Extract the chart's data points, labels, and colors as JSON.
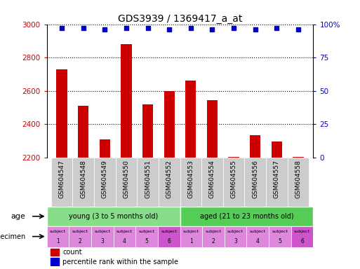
{
  "title": "GDS3939 / 1369417_a_at",
  "samples": [
    "GSM604547",
    "GSM604548",
    "GSM604549",
    "GSM604550",
    "GSM604551",
    "GSM604552",
    "GSM604553",
    "GSM604554",
    "GSM604555",
    "GSM604556",
    "GSM604557",
    "GSM604558"
  ],
  "counts": [
    2730,
    2510,
    2310,
    2880,
    2520,
    2600,
    2660,
    2545,
    2205,
    2335,
    2295,
    2205
  ],
  "percentile_ranks": [
    97,
    97,
    96,
    97,
    97,
    96,
    97,
    96,
    97,
    96,
    97,
    96
  ],
  "ylim_left": [
    2200,
    3000
  ],
  "ylim_right": [
    0,
    100
  ],
  "yticks_left": [
    2200,
    2400,
    2600,
    2800,
    3000
  ],
  "yticks_right": [
    0,
    25,
    50,
    75,
    100
  ],
  "bar_color": "#cc0000",
  "dot_color": "#0000cc",
  "age_groups": [
    {
      "label": "young (3 to 5 months old)",
      "start": 0,
      "end": 6,
      "color": "#88dd88"
    },
    {
      "label": "aged (21 to 23 months old)",
      "start": 6,
      "end": 12,
      "color": "#55cc55"
    }
  ],
  "subjects_top": [
    "subject",
    "subject",
    "subject",
    "subject",
    "subject",
    "subject",
    "subject",
    "subject",
    "subject",
    "subject",
    "subject",
    "subject"
  ],
  "subjects_num": [
    "1",
    "2",
    "3",
    "4",
    "5",
    "6",
    "1",
    "2",
    "3",
    "4",
    "5",
    "6"
  ],
  "subject_colors": [
    "#dd88dd",
    "#dd88dd",
    "#dd88dd",
    "#dd88dd",
    "#dd88dd",
    "#cc55cc",
    "#dd88dd",
    "#dd88dd",
    "#dd88dd",
    "#dd88dd",
    "#dd88dd",
    "#cc55cc"
  ],
  "legend_count_color": "#cc0000",
  "legend_dot_color": "#0000cc",
  "background_color": "#ffffff",
  "xticklabel_bg": "#cccccc"
}
